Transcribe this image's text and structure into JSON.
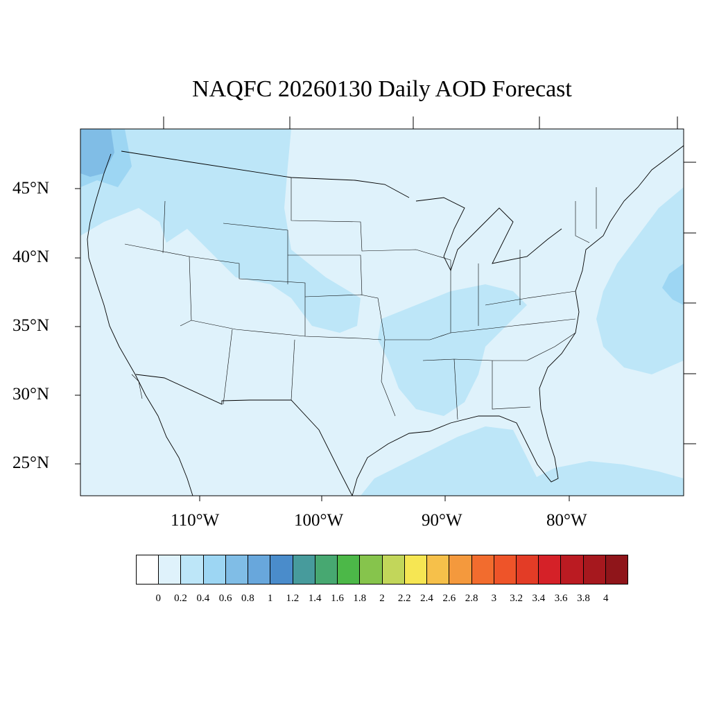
{
  "title": "NAQFC 20260130 Daily AOD Forecast",
  "lat_labels": [
    "45°N",
    "40°N",
    "35°N",
    "30°N",
    "25°N"
  ],
  "lon_labels": [
    "110°W",
    "100°W",
    "90°W",
    "80°W"
  ],
  "colorbar": {
    "ticks": [
      "0",
      "0.2",
      "0.4",
      "0.6",
      "0.8",
      "1",
      "1.2",
      "1.4",
      "1.6",
      "1.8",
      "2",
      "2.2",
      "2.4",
      "2.6",
      "2.8",
      "3",
      "3.2",
      "3.4",
      "3.6",
      "3.8",
      "4"
    ],
    "colors": [
      "#ffffff",
      "#dff2fb",
      "#bde6f8",
      "#9dd6f3",
      "#80bde6",
      "#68a7dc",
      "#4a8ccb",
      "#479b9c",
      "#47a871",
      "#4cb848",
      "#86c44c",
      "#c2d65a",
      "#f6e653",
      "#f6c04a",
      "#f4993d",
      "#f26c2e",
      "#ee5429",
      "#e33c26",
      "#d52128",
      "#bb1b22",
      "#a6181e",
      "#8f151a"
    ]
  },
  "colors": {
    "ocean_base": "#dff2fb",
    "level_02": "#bde6f8",
    "level_04": "#9dd6f3",
    "level_06": "#80bde6"
  }
}
